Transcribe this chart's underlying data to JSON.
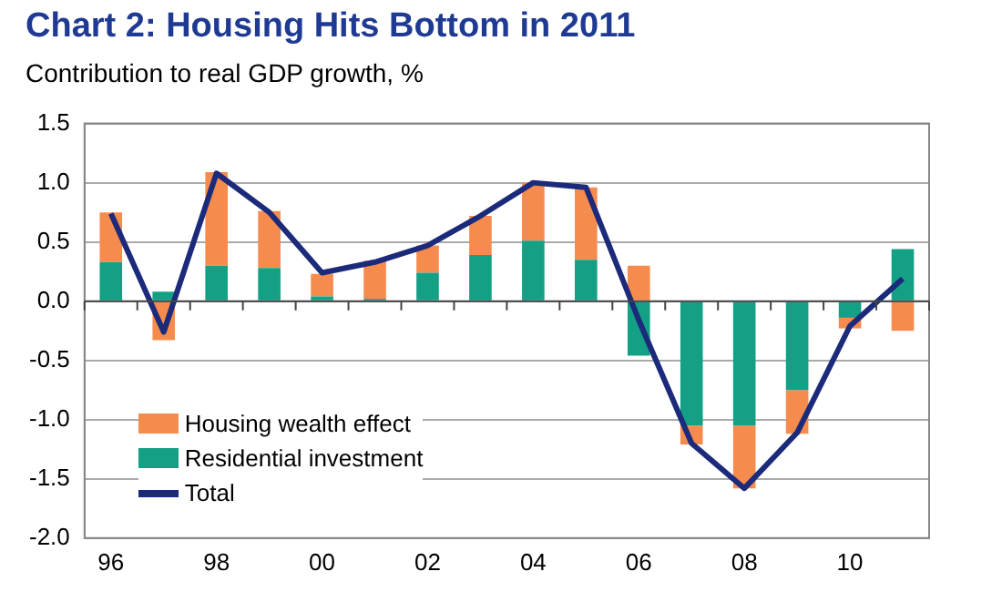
{
  "chart_data": {
    "type": "bar",
    "title": "Chart 2: Housing Hits Bottom in 2011",
    "subtitle": "Contribution to real GDP growth, %",
    "categories": [
      "96",
      null,
      "98",
      null,
      "00",
      null,
      "02",
      null,
      "04",
      null,
      "06",
      null,
      "08",
      null,
      "10",
      null
    ],
    "stacked": true,
    "series": [
      {
        "name": "Residential investment",
        "color": "#13a085",
        "values": [
          0.33,
          0.08,
          0.3,
          0.28,
          0.04,
          0.02,
          0.24,
          0.39,
          0.51,
          0.35,
          -0.46,
          -1.05,
          -1.05,
          -0.75,
          -0.14,
          0.44
        ]
      },
      {
        "name": "Housing wealth effect",
        "color": "#f68b4e",
        "values": [
          0.42,
          -0.33,
          0.79,
          0.48,
          0.19,
          0.32,
          0.23,
          0.33,
          0.49,
          0.61,
          0.3,
          -0.16,
          -0.53,
          -0.37,
          -0.09,
          -0.25
        ]
      },
      {
        "name": "Total",
        "type": "line",
        "color": "#1b2a7a",
        "values": [
          0.74,
          -0.26,
          1.08,
          0.75,
          0.24,
          0.33,
          0.47,
          0.72,
          1.0,
          0.96,
          -0.16,
          -1.2,
          -1.58,
          -1.11,
          -0.21,
          0.19
        ]
      }
    ],
    "ylim": [
      -2,
      1.5
    ],
    "yticks": [
      {
        "value": -2,
        "label": "-2.0"
      },
      {
        "value": -1.5,
        "label": "-1.5"
      },
      {
        "value": -1,
        "label": "-1.0"
      },
      {
        "value": -0.5,
        "label": "-0.5"
      },
      {
        "value": 0,
        "label": "0.0"
      },
      {
        "value": 0.5,
        "label": "0.5"
      },
      {
        "value": 1,
        "label": "1.0"
      },
      {
        "value": 1.5,
        "label": "1.5"
      }
    ],
    "grid": "y",
    "legend": "bottom left",
    "marker": "none"
  }
}
